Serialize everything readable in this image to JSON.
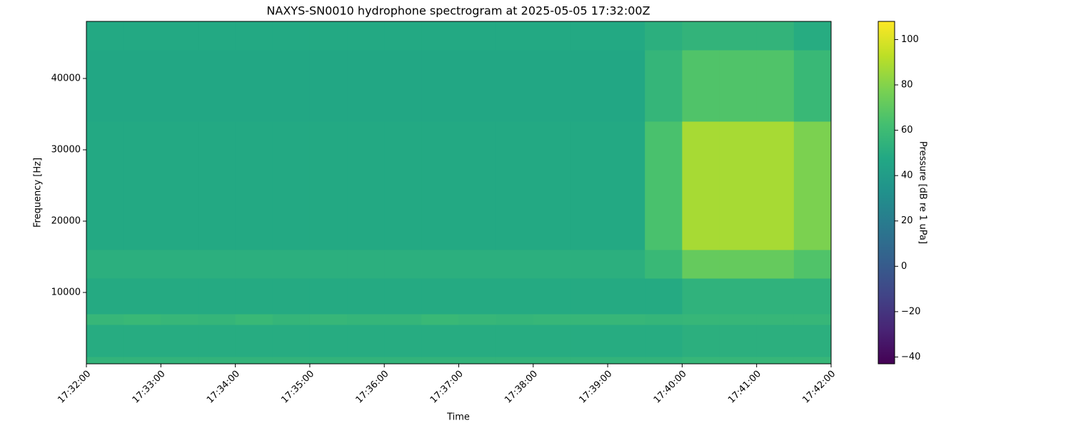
{
  "chart_data": {
    "type": "heatmap",
    "title": "NAXYS-SN0010 hydrophone spectrogram at 2025-05-05 17:32:00Z",
    "xlabel": "Time",
    "ylabel": "Frequency [Hz]",
    "x": [
      "17:32:00",
      "17:32:30",
      "17:33:00",
      "17:33:30",
      "17:34:00",
      "17:34:30",
      "17:35:00",
      "17:35:30",
      "17:36:00",
      "17:36:30",
      "17:37:00",
      "17:37:30",
      "17:38:00",
      "17:38:30",
      "17:39:00",
      "17:39:30",
      "17:40:00",
      "17:40:30",
      "17:41:00",
      "17:41:30",
      "17:42:00"
    ],
    "y": [
      0,
      1000,
      5500,
      7000,
      12000,
      16000,
      34000,
      44000,
      48000
    ],
    "values": [
      [
        55,
        55,
        55,
        55,
        55,
        55,
        55,
        55,
        55,
        55,
        55,
        55,
        55,
        55,
        55,
        55,
        57,
        57,
        57,
        57
      ],
      [
        50,
        50,
        50,
        50,
        50,
        50,
        50,
        50,
        50,
        50,
        50,
        50,
        50,
        50,
        50,
        50,
        52,
        52,
        52,
        52
      ],
      [
        57,
        58,
        57,
        56,
        58,
        56,
        57,
        56,
        56,
        58,
        57,
        56,
        57,
        57,
        57,
        56,
        57,
        57,
        57,
        57
      ],
      [
        49,
        49,
        49,
        49,
        49,
        49,
        49,
        49,
        49,
        49,
        49,
        49,
        49,
        49,
        49,
        49,
        54,
        54,
        54,
        54
      ],
      [
        52,
        52,
        52,
        52,
        52,
        52,
        52,
        52,
        52,
        52,
        52,
        52,
        52,
        52,
        52,
        58,
        72,
        72,
        72,
        66
      ],
      [
        48,
        48,
        48,
        48,
        48,
        48,
        48,
        48,
        48,
        48,
        48,
        48,
        48,
        48,
        48,
        64,
        88,
        88,
        88,
        78
      ],
      [
        47,
        47,
        47,
        47,
        47,
        47,
        47,
        47,
        47,
        47,
        47,
        47,
        47,
        47,
        47,
        56,
        66,
        66,
        66,
        58
      ],
      [
        48,
        48,
        48,
        48,
        48,
        48,
        48,
        48,
        48,
        48,
        48,
        48,
        48,
        48,
        48,
        52,
        55,
        55,
        55,
        50
      ]
    ],
    "colormap": "viridis",
    "xlim": [
      "17:32:00",
      "17:42:00"
    ],
    "xticks": [
      "17:32:00",
      "17:33:00",
      "17:34:00",
      "17:35:00",
      "17:36:00",
      "17:37:00",
      "17:38:00",
      "17:39:00",
      "17:40:00",
      "17:41:00",
      "17:42:00"
    ],
    "ylim": [
      0,
      48000
    ],
    "yticks": [
      10000,
      20000,
      30000,
      40000
    ],
    "colorbar_label": "Pressure [dB re 1 uPa]",
    "clim": [
      -43,
      108
    ],
    "cticks": [
      {
        "value": -40,
        "label": "−40"
      },
      {
        "value": -20,
        "label": "−20"
      },
      0,
      20,
      40,
      60,
      80,
      100
    ]
  }
}
